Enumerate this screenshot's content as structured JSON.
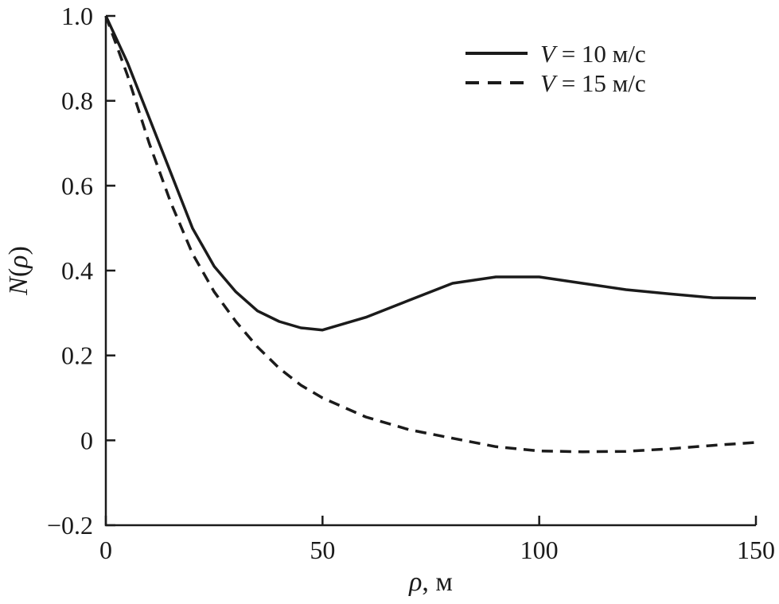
{
  "chart_data": {
    "type": "line",
    "title": "",
    "xlabel": "ρ, м",
    "ylabel": "N(ρ)",
    "xlim": [
      0,
      150
    ],
    "ylim": [
      -0.2,
      1.0
    ],
    "grid": false,
    "legend_position": "top-right",
    "background_color": "#ffffff",
    "line_color": "#1b1b1b",
    "xticks": [
      {
        "v": 0,
        "label": "0"
      },
      {
        "v": 50,
        "label": "50"
      },
      {
        "v": 100,
        "label": "100"
      },
      {
        "v": 150,
        "label": "150"
      }
    ],
    "yticks": [
      {
        "v": 1.0,
        "label": "1.0"
      },
      {
        "v": 0.8,
        "label": "0.8"
      },
      {
        "v": 0.6,
        "label": "0.6"
      },
      {
        "v": 0.4,
        "label": "0.4"
      },
      {
        "v": 0.2,
        "label": "0.2"
      },
      {
        "v": 0,
        "label": "0"
      },
      {
        "v": -0.2,
        "label": "−0.2"
      }
    ],
    "x": [
      0,
      5,
      10,
      15,
      20,
      25,
      30,
      35,
      40,
      45,
      50,
      60,
      70,
      80,
      90,
      100,
      110,
      120,
      130,
      140,
      150
    ],
    "series": [
      {
        "name": "V = 10 м/с",
        "style": "solid",
        "values": [
          1.0,
          0.89,
          0.76,
          0.63,
          0.5,
          0.41,
          0.35,
          0.305,
          0.28,
          0.265,
          0.26,
          0.29,
          0.33,
          0.37,
          0.385,
          0.385,
          0.37,
          0.355,
          0.345,
          0.336,
          0.335
        ]
      },
      {
        "name": "V = 15 м/с",
        "style": "dashed",
        "values": [
          1.0,
          0.86,
          0.7,
          0.56,
          0.44,
          0.35,
          0.28,
          0.22,
          0.17,
          0.13,
          0.1,
          0.055,
          0.025,
          0.005,
          -0.015,
          -0.025,
          -0.027,
          -0.026,
          -0.02,
          -0.012,
          -0.005
        ]
      }
    ]
  }
}
